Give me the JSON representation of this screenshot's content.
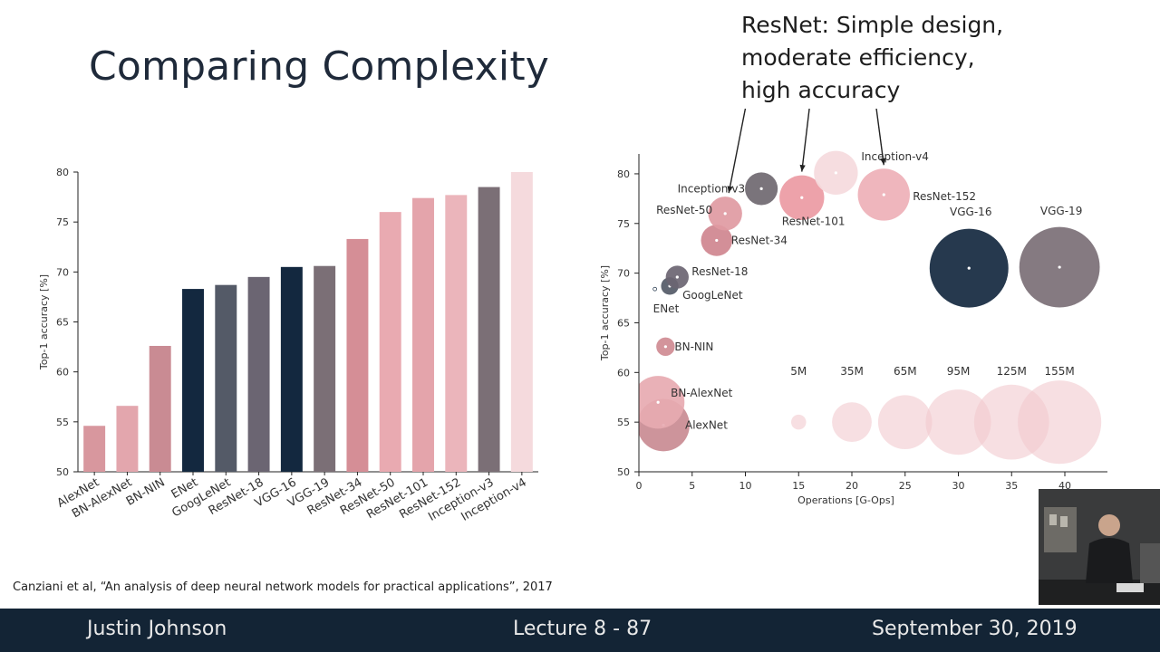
{
  "slide": {
    "title": "Comparing Complexity",
    "note_lines": [
      "ResNet: Simple design,",
      "moderate efficiency,",
      "high accuracy"
    ],
    "citation": "Canziani et al, “An analysis of deep neural network models for practical applications”, 2017"
  },
  "footer": {
    "author": "Justin Johnson",
    "lecture": "Lecture 8 - 87",
    "date": "September 30, 2019"
  },
  "colors": {
    "navy": "#13283f",
    "gray": "#7b6f76",
    "pink": "#e2a0a9",
    "pink_light": "#efc3c9",
    "rose": "#d4878f",
    "footer_bg": "#132435"
  },
  "chart_data": [
    {
      "type": "bar",
      "categories": [
        "AlexNet",
        "BN-AlexNet",
        "BN-NIN",
        "ENet",
        "GoogLeNet",
        "ResNet-18",
        "VGG-16",
        "VGG-19",
        "ResNet-34",
        "ResNet-50",
        "ResNet-101",
        "ResNet-152",
        "Inception-v3",
        "Inception-v4"
      ],
      "values": [
        54.6,
        56.6,
        62.6,
        68.3,
        68.7,
        69.5,
        70.5,
        70.6,
        73.3,
        76.0,
        77.4,
        77.7,
        78.5,
        80.0
      ],
      "colors": [
        "#d8979e",
        "#e3a6ad",
        "#c98b93",
        "#13283f",
        "#545a67",
        "#6b6572",
        "#13283f",
        "#7b6f76",
        "#d58e96",
        "#e9aab1",
        "#e4a4ab",
        "#ebb5bb",
        "#7b6f76",
        "#f5dadd"
      ],
      "ylabel": "Top-1 accuracy [%]",
      "ylim": [
        50,
        80
      ],
      "yticks": [
        50,
        55,
        60,
        65,
        70,
        75,
        80
      ],
      "grid": false
    },
    {
      "type": "scatter",
      "subtype": "bubble",
      "xlabel": "Operations [G-Ops]",
      "ylabel": "Top-1 accuracy [%]",
      "xlim": [
        0,
        44
      ],
      "ylim": [
        50,
        82
      ],
      "xticks": [
        0,
        5,
        10,
        15,
        20,
        25,
        30,
        35,
        40
      ],
      "yticks": [
        50,
        55,
        60,
        65,
        70,
        75,
        80
      ],
      "points": [
        {
          "label": "AlexNet",
          "x": 2.3,
          "y": 54.7,
          "params_m": 61,
          "color": "#c98b93"
        },
        {
          "label": "BN-AlexNet",
          "x": 1.8,
          "y": 57.0,
          "params_m": 62,
          "color": "#e7aab1"
        },
        {
          "label": "BN-NIN",
          "x": 2.5,
          "y": 62.6,
          "params_m": 7.6,
          "color": "#cf8b93"
        },
        {
          "label": "ENet",
          "x": 1.5,
          "y": 68.4,
          "params_m": 0.4,
          "color": "#13283f"
        },
        {
          "label": "GoogLeNet",
          "x": 2.9,
          "y": 68.7,
          "params_m": 6.8,
          "color": "#545a67"
        },
        {
          "label": "ResNet-18",
          "x": 3.6,
          "y": 69.6,
          "params_m": 11.7,
          "color": "#6b6572"
        },
        {
          "label": "ResNet-34",
          "x": 7.3,
          "y": 73.3,
          "params_m": 21.8,
          "color": "#cf868f"
        },
        {
          "label": "ResNet-50",
          "x": 8.1,
          "y": 76.0,
          "params_m": 25.6,
          "color": "#df9aa2"
        },
        {
          "label": "ResNet-101",
          "x": 15.3,
          "y": 77.6,
          "params_m": 44.5,
          "color": "#ec9aa3"
        },
        {
          "label": "ResNet-152",
          "x": 23.0,
          "y": 77.9,
          "params_m": 60.2,
          "color": "#eeb0b7"
        },
        {
          "label": "Inception-v3",
          "x": 11.5,
          "y": 78.5,
          "params_m": 23.8,
          "color": "#6f6870"
        },
        {
          "label": "Inception-v4",
          "x": 18.5,
          "y": 80.1,
          "params_m": 42.7,
          "color": "#f5dadd"
        },
        {
          "label": "VGG-16",
          "x": 31.0,
          "y": 70.5,
          "params_m": 138,
          "color": "#13283f"
        },
        {
          "label": "VGG-19",
          "x": 39.5,
          "y": 70.6,
          "params_m": 144,
          "color": "#7b6f76"
        }
      ],
      "size_legend": {
        "items": [
          "5M",
          "35M",
          "65M",
          "95M",
          "125M",
          "155M"
        ],
        "values_m": [
          5,
          35,
          65,
          95,
          125,
          155
        ],
        "x": [
          15,
          20,
          25,
          30,
          35,
          39.5
        ],
        "y": 55
      }
    }
  ]
}
